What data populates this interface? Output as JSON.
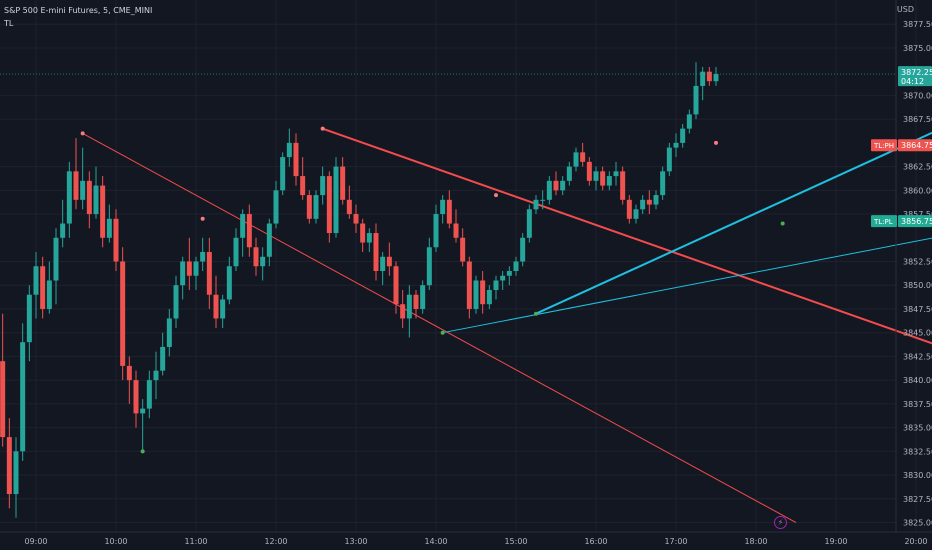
{
  "header": {
    "symbol_line": "S&P 500 E-mini Futures, 5, CME_MINI",
    "indicator": "TL"
  },
  "price_axis": {
    "currency": "USD",
    "ticks": [
      "3877.50",
      "3875.00",
      "3870.00",
      "3867.50",
      "3862.50",
      "3860.00",
      "3857.50",
      "3852.50",
      "3850.00",
      "3847.50",
      "3845.00",
      "3842.50",
      "3840.00",
      "3837.50",
      "3835.00",
      "3832.50",
      "3830.00",
      "3827.50",
      "3825.00"
    ],
    "last_price_label": "3872.25",
    "countdown_label": "04:12",
    "tl_ph_label": "TL:PH",
    "tl_ph_value": "3864.75",
    "tl_pl_label": "TL:PL",
    "tl_pl_value": "3856.75"
  },
  "time_axis": {
    "ticks": [
      "09:00",
      "10:00",
      "11:00",
      "12:00",
      "13:00",
      "14:00",
      "15:00",
      "16:00",
      "17:00",
      "18:00",
      "19:00",
      "20:00"
    ]
  },
  "colors": {
    "background": "#131722",
    "up": "#26a69a",
    "down": "#ef5350",
    "trendline_high": "#f44b4b",
    "trendline_low": "#1ec0e0",
    "pivot_high_dot": "#f77c80",
    "pivot_low_dot": "#4caf50",
    "axis_text": "#b2b5be",
    "grid": "#1e222d"
  },
  "chart_data": {
    "type": "candlestick",
    "series": [
      {
        "name": "candles_ohlc",
        "values": [
          [
            3838.0,
            3840.5,
            3828.0,
            3830.5
          ],
          [
            3830.5,
            3838.5,
            3826.0,
            3836.0
          ],
          [
            3836.0,
            3844.0,
            3834.5,
            3842.0
          ],
          [
            3842.0,
            3847.0,
            3833.0,
            3834.0
          ],
          [
            3834.0,
            3836.0,
            3826.5,
            3828.0
          ],
          [
            3828.0,
            3834.0,
            3825.5,
            3832.5
          ],
          [
            3832.5,
            3846.0,
            3831.5,
            3844.0
          ],
          [
            3844.0,
            3850.0,
            3842.0,
            3849.0
          ],
          [
            3849.0,
            3853.5,
            3846.5,
            3852.0
          ],
          [
            3852.0,
            3853.0,
            3846.5,
            3847.5
          ],
          [
            3847.5,
            3852.5,
            3847.0,
            3850.5
          ],
          [
            3850.5,
            3856.0,
            3848.0,
            3855.0
          ],
          [
            3855.0,
            3859.0,
            3854.0,
            3856.5
          ],
          [
            3856.5,
            3863.0,
            3855.0,
            3862.0
          ],
          [
            3862.0,
            3865.5,
            3858.0,
            3859.0
          ],
          [
            3859.0,
            3864.5,
            3858.0,
            3861.0
          ],
          [
            3861.0,
            3862.0,
            3856.0,
            3857.5
          ],
          [
            3857.5,
            3862.5,
            3857.0,
            3860.5
          ],
          [
            3860.5,
            3861.5,
            3854.0,
            3855.0
          ],
          [
            3855.0,
            3858.5,
            3854.5,
            3857.0
          ],
          [
            3857.0,
            3858.0,
            3851.5,
            3852.5
          ],
          [
            3852.5,
            3854.0,
            3840.0,
            3841.5
          ],
          [
            3841.5,
            3842.5,
            3837.5,
            3840.0
          ],
          [
            3840.0,
            3841.0,
            3835.0,
            3836.5
          ],
          [
            3836.5,
            3838.0,
            3832.5,
            3837.0
          ],
          [
            3837.0,
            3841.0,
            3836.0,
            3840.0
          ],
          [
            3840.0,
            3843.0,
            3838.0,
            3841.0
          ],
          [
            3841.0,
            3845.0,
            3840.5,
            3843.5
          ],
          [
            3843.5,
            3847.5,
            3842.5,
            3846.5
          ],
          [
            3846.5,
            3851.0,
            3845.5,
            3850.0
          ],
          [
            3850.0,
            3853.0,
            3848.5,
            3852.5
          ],
          [
            3852.5,
            3855.0,
            3849.5,
            3851.0
          ],
          [
            3851.0,
            3853.0,
            3849.5,
            3852.5
          ],
          [
            3852.5,
            3855.0,
            3851.5,
            3853.5
          ],
          [
            3853.5,
            3855.0,
            3847.5,
            3849.0
          ],
          [
            3849.0,
            3851.0,
            3845.5,
            3846.5
          ],
          [
            3846.5,
            3849.0,
            3845.5,
            3848.5
          ],
          [
            3848.5,
            3853.0,
            3848.0,
            3852.0
          ],
          [
            3852.0,
            3856.0,
            3851.5,
            3855.0
          ],
          [
            3855.0,
            3858.0,
            3853.0,
            3857.5
          ],
          [
            3857.5,
            3858.5,
            3853.0,
            3854.0
          ],
          [
            3854.0,
            3855.0,
            3851.0,
            3852.0
          ],
          [
            3852.0,
            3854.0,
            3850.5,
            3853.0
          ],
          [
            3853.0,
            3857.0,
            3852.0,
            3856.5
          ],
          [
            3856.5,
            3861.0,
            3856.0,
            3860.0
          ],
          [
            3860.0,
            3864.0,
            3859.5,
            3863.5
          ],
          [
            3863.5,
            3866.5,
            3862.5,
            3865.0
          ],
          [
            3865.0,
            3866.0,
            3860.5,
            3861.5
          ],
          [
            3861.5,
            3863.5,
            3859.0,
            3859.5
          ],
          [
            3859.5,
            3860.0,
            3856.5,
            3857.0
          ],
          [
            3857.0,
            3860.0,
            3856.5,
            3859.5
          ],
          [
            3859.5,
            3862.5,
            3858.5,
            3861.5
          ],
          [
            3861.5,
            3862.0,
            3854.5,
            3855.5
          ],
          [
            3855.5,
            3863.5,
            3855.0,
            3862.5
          ],
          [
            3862.5,
            3863.5,
            3858.5,
            3859.0
          ],
          [
            3859.0,
            3860.5,
            3857.0,
            3857.5
          ],
          [
            3857.5,
            3858.5,
            3855.5,
            3856.5
          ],
          [
            3856.5,
            3857.0,
            3853.5,
            3854.5
          ],
          [
            3854.5,
            3856.0,
            3853.5,
            3855.5
          ],
          [
            3855.5,
            3856.5,
            3850.5,
            3851.5
          ],
          [
            3851.5,
            3853.5,
            3850.0,
            3853.0
          ],
          [
            3853.0,
            3854.5,
            3851.0,
            3852.0
          ],
          [
            3852.0,
            3852.5,
            3847.0,
            3848.0
          ],
          [
            3848.0,
            3849.5,
            3845.5,
            3846.5
          ],
          [
            3846.5,
            3850.0,
            3844.5,
            3849.0
          ],
          [
            3849.0,
            3849.5,
            3846.5,
            3847.5
          ],
          [
            3847.5,
            3850.5,
            3847.0,
            3850.0
          ],
          [
            3850.0,
            3855.0,
            3849.5,
            3854.0
          ],
          [
            3854.0,
            3858.5,
            3853.5,
            3857.5
          ],
          [
            3857.5,
            3859.5,
            3856.5,
            3859.0
          ],
          [
            3859.0,
            3860.0,
            3856.0,
            3856.5
          ],
          [
            3856.5,
            3858.0,
            3854.5,
            3855.0
          ],
          [
            3855.0,
            3856.0,
            3852.0,
            3852.5
          ],
          [
            3852.5,
            3853.0,
            3846.5,
            3847.5
          ],
          [
            3847.5,
            3851.0,
            3847.0,
            3850.5
          ],
          [
            3850.5,
            3851.5,
            3847.0,
            3848.0
          ],
          [
            3848.0,
            3850.0,
            3847.5,
            3849.5
          ],
          [
            3849.5,
            3851.0,
            3848.5,
            3850.5
          ],
          [
            3850.5,
            3851.5,
            3849.5,
            3851.0
          ],
          [
            3851.0,
            3852.0,
            3850.0,
            3851.5
          ],
          [
            3851.5,
            3853.0,
            3851.0,
            3852.5
          ],
          [
            3852.5,
            3855.5,
            3852.0,
            3855.0
          ],
          [
            3855.0,
            3858.5,
            3854.5,
            3858.0
          ],
          [
            3858.0,
            3859.5,
            3857.5,
            3859.0
          ],
          [
            3859.0,
            3860.0,
            3858.0,
            3859.0
          ],
          [
            3859.0,
            3861.5,
            3858.5,
            3861.0
          ],
          [
            3861.0,
            3862.0,
            3859.5,
            3860.0
          ],
          [
            3860.0,
            3861.5,
            3859.5,
            3861.0
          ],
          [
            3861.0,
            3863.0,
            3860.5,
            3862.5
          ],
          [
            3862.5,
            3864.5,
            3862.0,
            3864.0
          ],
          [
            3864.0,
            3865.0,
            3862.5,
            3863.0
          ],
          [
            3863.0,
            3863.5,
            3860.5,
            3861.0
          ],
          [
            3861.0,
            3862.5,
            3860.0,
            3862.0
          ],
          [
            3862.0,
            3862.5,
            3860.0,
            3860.5
          ],
          [
            3860.5,
            3862.0,
            3860.0,
            3861.5
          ],
          [
            3861.5,
            3863.0,
            3860.5,
            3862.0
          ],
          [
            3862.0,
            3862.5,
            3858.5,
            3859.0
          ],
          [
            3859.0,
            3859.5,
            3856.5,
            3857.0
          ],
          [
            3857.0,
            3858.5,
            3856.5,
            3858.0
          ],
          [
            3858.0,
            3859.5,
            3857.5,
            3859.0
          ],
          [
            3859.0,
            3860.0,
            3857.5,
            3858.5
          ],
          [
            3858.5,
            3860.0,
            3858.0,
            3859.5
          ],
          [
            3859.5,
            3862.5,
            3859.0,
            3862.0
          ],
          [
            3862.0,
            3865.0,
            3861.5,
            3864.5
          ],
          [
            3864.5,
            3866.0,
            3863.5,
            3865.0
          ],
          [
            3865.0,
            3867.0,
            3864.5,
            3866.5
          ],
          [
            3866.5,
            3868.5,
            3866.0,
            3868.0
          ],
          [
            3868.0,
            3873.5,
            3867.5,
            3871.0
          ],
          [
            3871.0,
            3873.0,
            3869.5,
            3872.5
          ],
          [
            3872.5,
            3873.0,
            3871.0,
            3871.5
          ],
          [
            3871.5,
            3873.0,
            3871.0,
            3872.25
          ]
        ]
      }
    ],
    "trendlines": [
      {
        "name": "TL:PH steep",
        "from": [
          "09:35",
          3866.0
        ],
        "to": [
          "18:30",
          3825.0
        ]
      },
      {
        "name": "TL:PH",
        "from": [
          "12:35",
          3866.5
        ],
        "to": [
          "20:50",
          3842.0
        ]
      },
      {
        "name": "TL:PL",
        "from": [
          "15:15",
          3847.0
        ],
        "to": [
          "20:50",
          3868.5
        ]
      },
      {
        "name": "TL:PL long",
        "from": [
          "14:05",
          3845.0
        ],
        "to": [
          "20:50",
          3856.0
        ]
      }
    ],
    "pivot_points": [
      {
        "type": "high",
        "time": "09:35",
        "price": 3866.0
      },
      {
        "type": "high",
        "time": "11:05",
        "price": 3857.0
      },
      {
        "type": "high",
        "time": "12:35",
        "price": 3866.5
      },
      {
        "type": "high",
        "time": "14:45",
        "price": 3859.5
      },
      {
        "type": "high",
        "time": "17:30",
        "price": 3865.0
      },
      {
        "type": "low",
        "time": "10:20",
        "price": 3832.5
      },
      {
        "type": "low",
        "time": "14:05",
        "price": 3845.0
      },
      {
        "type": "low",
        "time": "15:15",
        "price": 3847.0
      },
      {
        "type": "low",
        "time": "18:20",
        "price": 3856.5
      }
    ],
    "ylim": [
      3824.0,
      3879.0
    ],
    "xlabel": "",
    "ylabel": ""
  }
}
